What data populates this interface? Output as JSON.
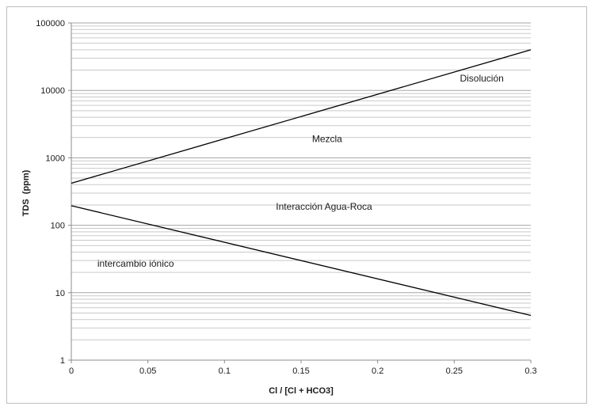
{
  "chart_data": {
    "type": "line",
    "title": "",
    "xlabel": "Cl / [Cl + HCO3]",
    "ylabel": "TDS  (ppm)",
    "xscale": "linear",
    "yscale": "log",
    "xlim": [
      0,
      0.3
    ],
    "ylim": [
      1,
      100000
    ],
    "grid": "horizontal major and minor (log)",
    "legend": "none",
    "x_ticks": [
      "0",
      "0.05",
      "0.1",
      "0.15",
      "0.2",
      "0.25",
      "0.3"
    ],
    "y_ticks": [
      "1",
      "10",
      "100",
      "1000",
      "10000",
      "100000"
    ],
    "series": [
      {
        "x": [
          0,
          0.3
        ],
        "y": [
          420,
          40000
        ],
        "color": "#000000"
      },
      {
        "x": [
          0,
          0.3
        ],
        "y": [
          195,
          4.6
        ],
        "color": "#000000"
      }
    ],
    "annotations": [
      {
        "text": "Disolución",
        "x": 0.268,
        "y": 15000
      },
      {
        "text": "Mezcla",
        "x": 0.167,
        "y": 1900
      },
      {
        "text": "Interacción Agua-Roca",
        "x": 0.165,
        "y": 190
      },
      {
        "text": "intercambio iónico",
        "x": 0.042,
        "y": 27
      }
    ]
  }
}
